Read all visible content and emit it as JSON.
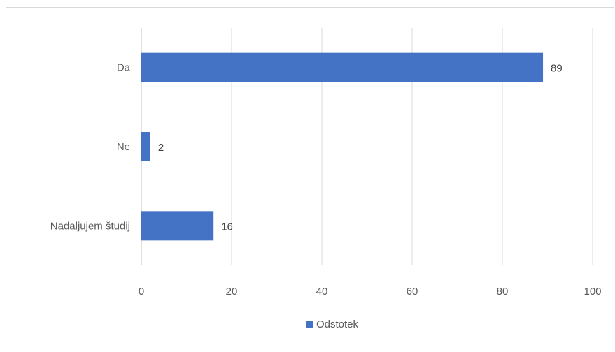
{
  "chart_data": {
    "type": "bar",
    "orientation": "horizontal",
    "categories": [
      "Da",
      "Ne",
      "Nadaljujem študij"
    ],
    "series": [
      {
        "name": "Odstotek",
        "values": [
          89,
          2,
          16
        ],
        "color": "#4472C4"
      }
    ],
    "x_ticks": [
      "0",
      "20",
      "40",
      "60",
      "80",
      "100"
    ],
    "xlim": [
      0,
      100
    ],
    "grid": true,
    "legend_position": "bottom",
    "data_labels": true
  }
}
